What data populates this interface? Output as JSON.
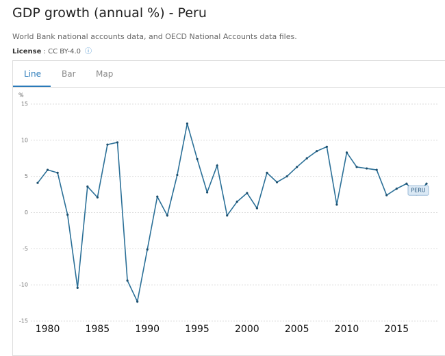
{
  "header": {
    "title": "GDP growth (annual %) - Peru",
    "subtitle": "World Bank national accounts data, and OECD National Accounts data files.",
    "license_label": "License",
    "license_value": ": CC BY-4.0"
  },
  "tabs": [
    "Line",
    "Bar",
    "Map"
  ],
  "chart_data": {
    "type": "line",
    "y_axis_label": "%",
    "series": [
      {
        "name": "PERU",
        "color": "#2a6f97",
        "x": [
          1979,
          1980,
          1981,
          1982,
          1983,
          1984,
          1985,
          1986,
          1987,
          1988,
          1989,
          1990,
          1991,
          1992,
          1993,
          1994,
          1995,
          1996,
          1997,
          1998,
          1999,
          2000,
          2001,
          2002,
          2003,
          2004,
          2005,
          2006,
          2007,
          2008,
          2009,
          2010,
          2011,
          2012,
          2013,
          2014,
          2015,
          2016,
          2017,
          2018
        ],
        "values": [
          4.1,
          5.9,
          5.5,
          -0.3,
          -10.4,
          3.6,
          2.1,
          9.4,
          9.7,
          -9.4,
          -12.3,
          -5.1,
          2.2,
          -0.4,
          5.2,
          12.3,
          7.4,
          2.8,
          6.5,
          -0.4,
          1.5,
          2.7,
          0.6,
          5.5,
          4.2,
          5.0,
          6.3,
          7.5,
          8.5,
          9.1,
          1.1,
          8.3,
          6.3,
          6.1,
          5.9,
          2.4,
          3.3,
          4.0,
          2.5,
          4.0
        ]
      }
    ],
    "xlim": [
      1979,
      2018
    ],
    "xticks": [
      1980,
      1985,
      1990,
      1995,
      2000,
      2005,
      2010,
      2015
    ],
    "ylim": [
      -15,
      15
    ],
    "yticks": [
      15,
      10,
      5,
      0,
      -5,
      -10,
      -15
    ],
    "grid": true
  }
}
